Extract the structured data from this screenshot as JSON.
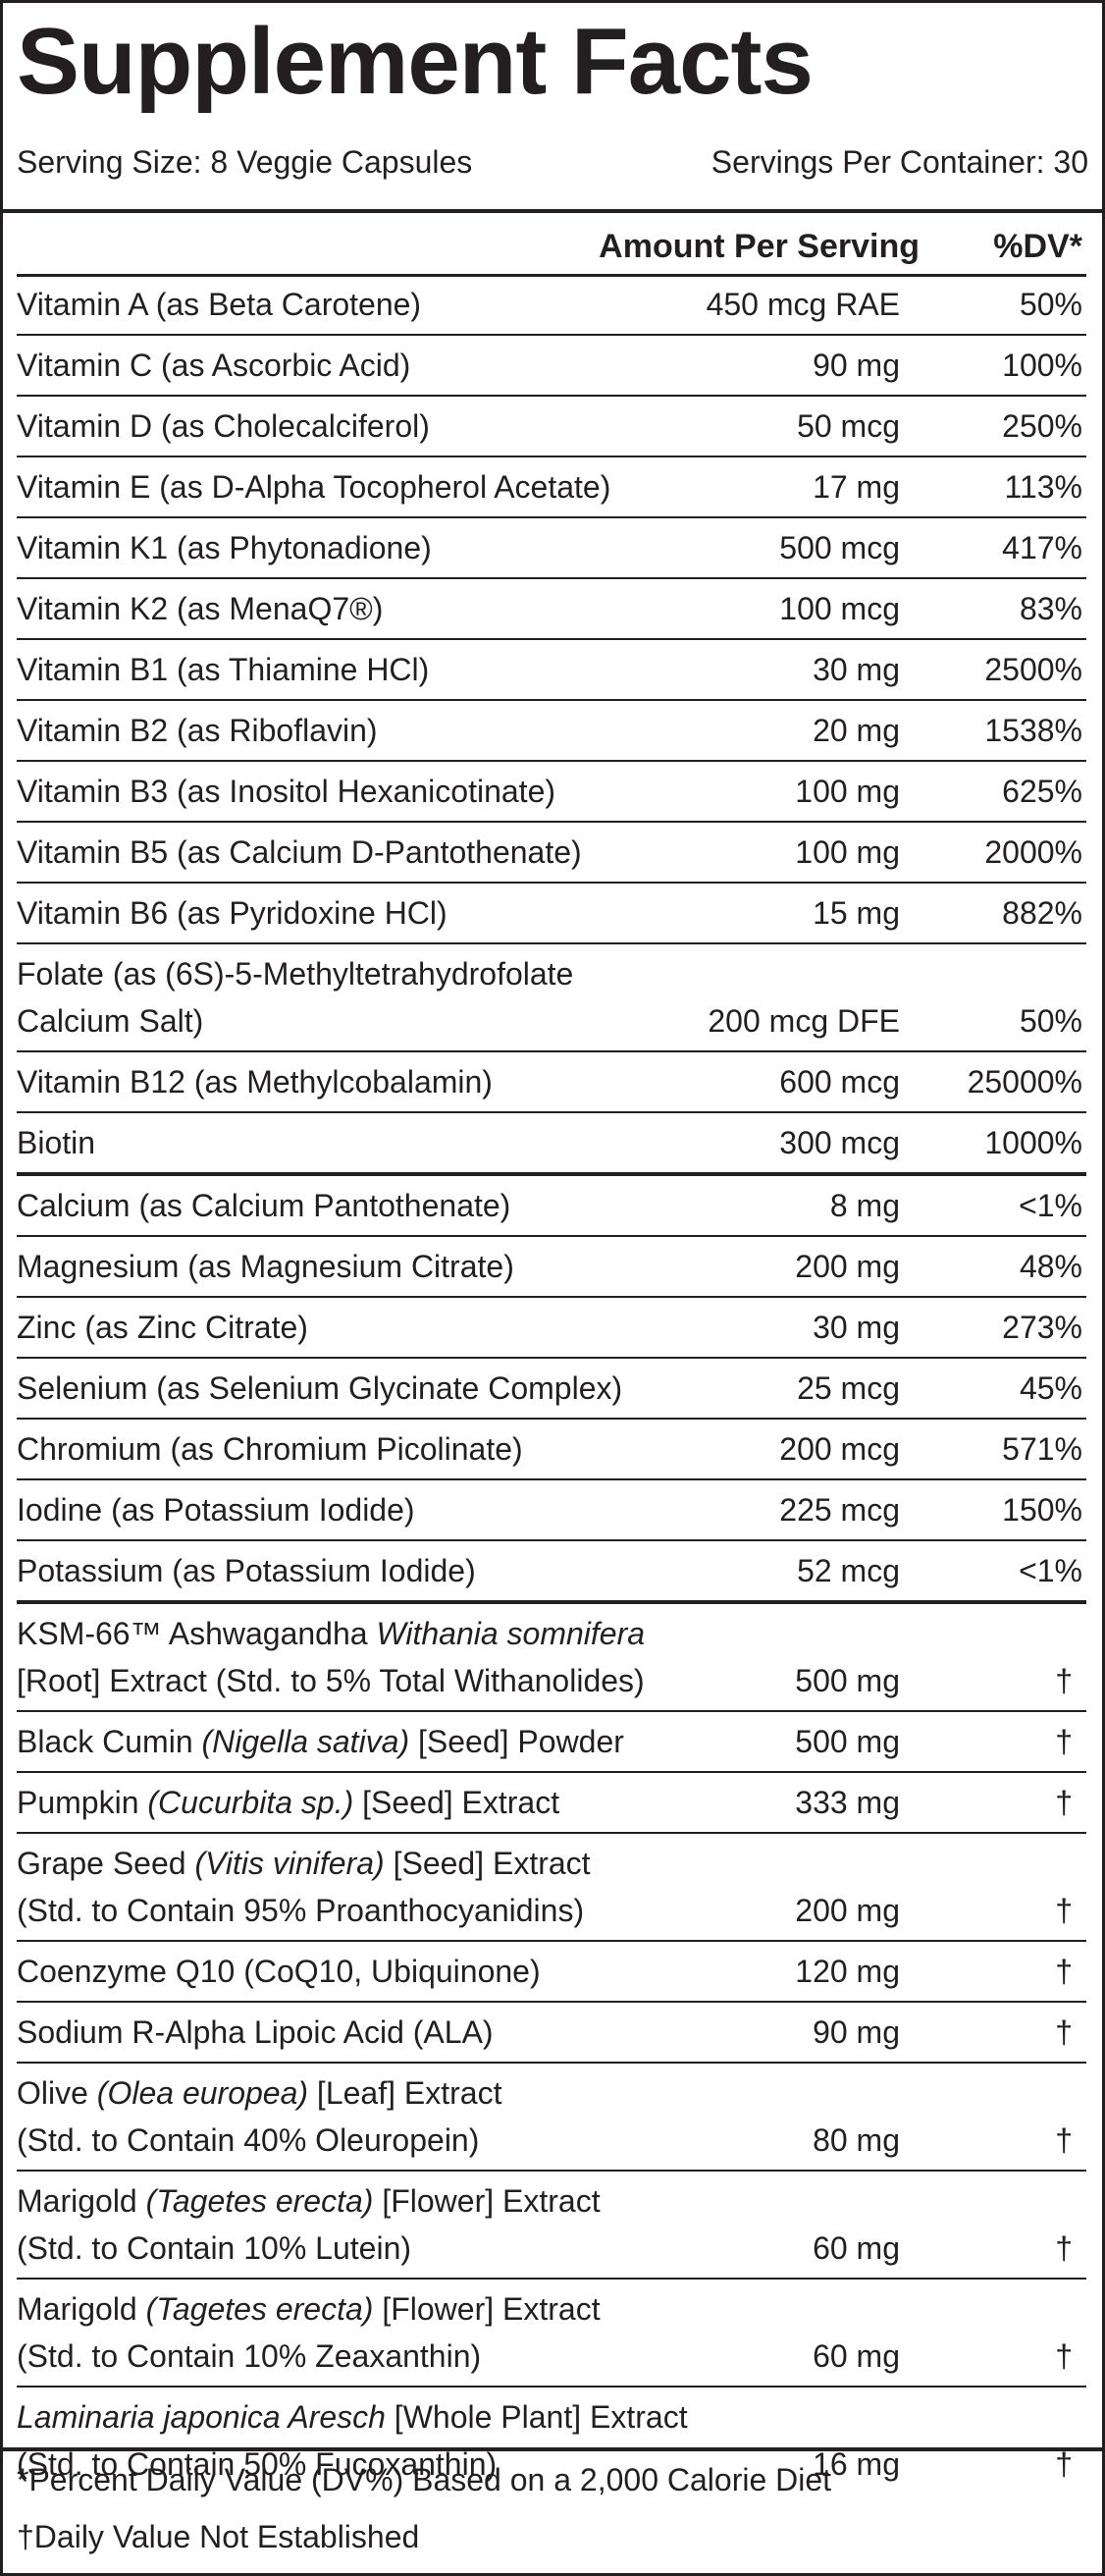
{
  "title": "Supplement Facts",
  "serving_size": "Serving Size: 8 Veggie Capsules",
  "servings_per_container": "Servings Per Container: 30",
  "header": {
    "amount": "Amount Per Serving",
    "dv": "%DV*"
  },
  "rows": [
    {
      "name": [
        "Vitamin A (as Beta Carotene)"
      ],
      "amount": "450 mcg RAE",
      "dv": "50%"
    },
    {
      "name": [
        "Vitamin C (as Ascorbic Acid)"
      ],
      "amount": "90 mg",
      "dv": "100%"
    },
    {
      "name": [
        "Vitamin D (as Cholecalciferol)"
      ],
      "amount": "50 mcg",
      "dv": "250%"
    },
    {
      "name": [
        "Vitamin E (as D-Alpha Tocopherol Acetate)"
      ],
      "amount": "17 mg",
      "dv": "113%"
    },
    {
      "name": [
        "Vitamin K1 (as Phytonadione)"
      ],
      "amount": "500 mcg",
      "dv": "417%"
    },
    {
      "name": [
        "Vitamin K2 (as MenaQ7®)"
      ],
      "amount": "100 mcg",
      "dv": "83%"
    },
    {
      "name": [
        "Vitamin B1 (as Thiamine HCl)"
      ],
      "amount": "30 mg",
      "dv": "2500%"
    },
    {
      "name": [
        "Vitamin B2 (as Riboflavin)"
      ],
      "amount": "20 mg",
      "dv": "1538%"
    },
    {
      "name": [
        "Vitamin B3 (as Inositol Hexanicotinate)"
      ],
      "amount": "100 mg",
      "dv": "625%"
    },
    {
      "name": [
        "Vitamin B5 (as Calcium D-Pantothenate)"
      ],
      "amount": "100 mg",
      "dv": "2000%"
    },
    {
      "name": [
        "Vitamin B6 (as Pyridoxine HCl)"
      ],
      "amount": "15 mg",
      "dv": "882%"
    },
    {
      "name": [
        "Folate (as (6S)-5-Methyltetrahydrofolate",
        "Calcium Salt)"
      ],
      "amount": "200 mcg DFE",
      "dv": "50%"
    },
    {
      "name": [
        "Vitamin B12 (as Methylcobalamin)"
      ],
      "amount": "600 mcg",
      "dv": "25000%"
    },
    {
      "name": [
        "Biotin"
      ],
      "amount": "300 mcg",
      "dv": "1000%",
      "thick": true
    },
    {
      "name": [
        "Calcium (as Calcium Pantothenate)"
      ],
      "amount": "8 mg",
      "dv": "<1%"
    },
    {
      "name": [
        "Magnesium (as Magnesium Citrate)"
      ],
      "amount": "200 mg",
      "dv": "48%"
    },
    {
      "name": [
        "Zinc (as Zinc Citrate)"
      ],
      "amount": "30 mg",
      "dv": "273%"
    },
    {
      "name": [
        "Selenium (as Selenium Glycinate Complex)"
      ],
      "amount": "25 mcg",
      "dv": "45%"
    },
    {
      "name": [
        "Chromium (as Chromium Picolinate)"
      ],
      "amount": "200 mcg",
      "dv": "571%"
    },
    {
      "name": [
        "Iodine (as Potassium Iodide)"
      ],
      "amount": "225 mcg",
      "dv": "150%"
    },
    {
      "name": [
        "Potassium (as Potassium Iodide)"
      ],
      "amount": "52 mcg",
      "dv": "<1%",
      "thick": true
    },
    {
      "name": [
        "KSM-66™ Ashwagandha *Withania somnifera*",
        "[Root] Extract (Std. to 5% Total Withanolides)"
      ],
      "amount": "500 mg",
      "dv": "†"
    },
    {
      "name": [
        "Black Cumin *(Nigella sativa)* [Seed] Powder"
      ],
      "amount": "500 mg",
      "dv": "†"
    },
    {
      "name": [
        "Pumpkin *(Cucurbita sp.)* [Seed] Extract"
      ],
      "amount": "333 mg",
      "dv": "†"
    },
    {
      "name": [
        "Grape Seed *(Vitis vinifera)* [Seed] Extract",
        "(Std. to Contain 95% Proanthocyanidins)"
      ],
      "amount": "200 mg",
      "dv": "†"
    },
    {
      "name": [
        "Coenzyme Q10 (CoQ10, Ubiquinone)"
      ],
      "amount": "120 mg",
      "dv": "†"
    },
    {
      "name": [
        "Sodium R-Alpha Lipoic Acid (ALA)"
      ],
      "amount": "90 mg",
      "dv": "†"
    },
    {
      "name": [
        "Olive *(Olea europea)* [Leaf] Extract",
        "(Std. to Contain 40% Oleuropein)"
      ],
      "amount": "80 mg",
      "dv": "†"
    },
    {
      "name": [
        "Marigold *(Tagetes erecta)* [Flower] Extract",
        "(Std. to Contain 10% Lutein)"
      ],
      "amount": "60 mg",
      "dv": "†"
    },
    {
      "name": [
        "Marigold *(Tagetes erecta)* [Flower] Extract",
        "(Std. to Contain 10% Zeaxanthin)"
      ],
      "amount": "60 mg",
      "dv": "†"
    },
    {
      "name": [
        "*Laminaria japonica Aresch* [Whole Plant] Extract",
        "(Std. to Contain 50% Fucoxanthin)"
      ],
      "amount": "16 mg",
      "dv": "†",
      "last": true
    }
  ],
  "footnotes": [
    "*Percent Daily Value (DV%) Based on a 2,000 Calorie Diet",
    "†Daily Value Not Established"
  ]
}
